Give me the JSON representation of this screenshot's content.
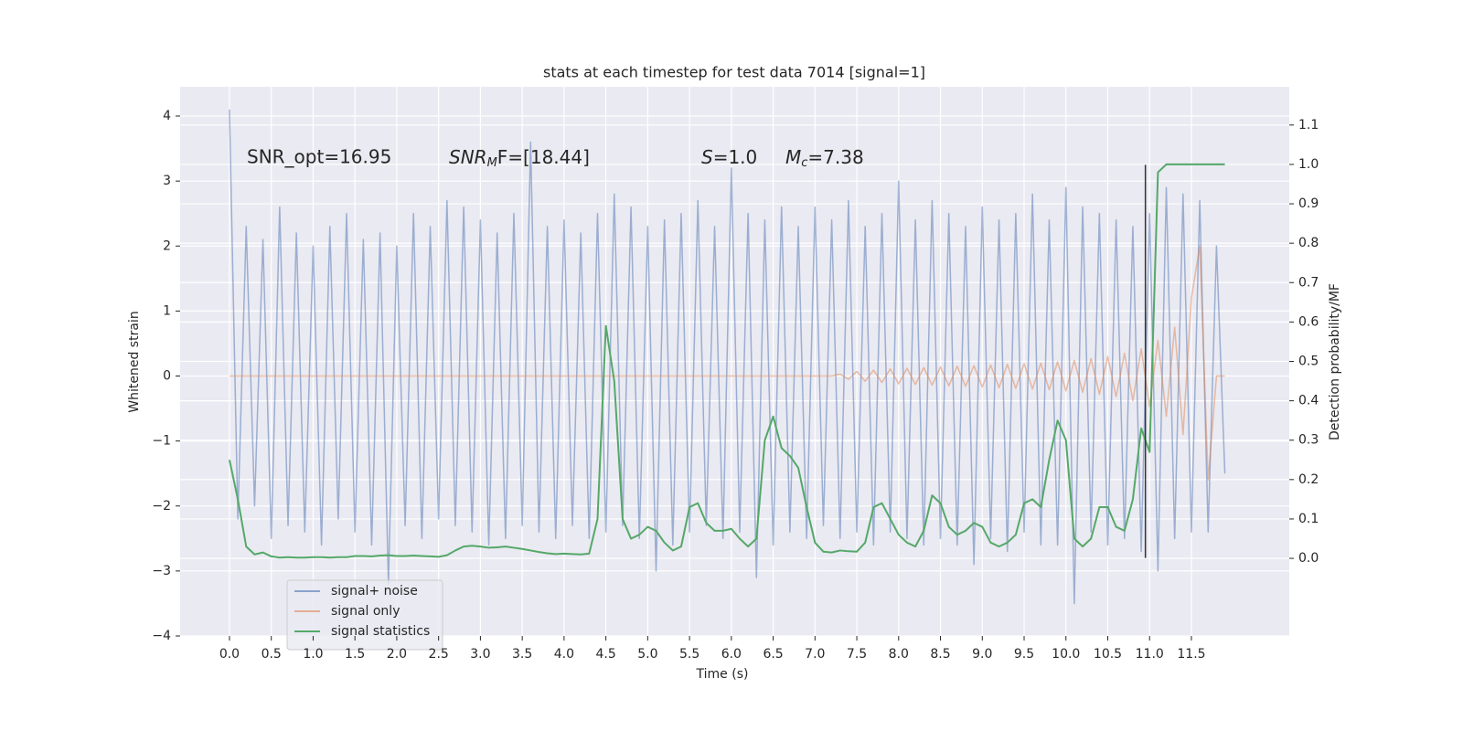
{
  "chart_data": {
    "type": "line",
    "title": "stats at each timestep for test data 7014 [signal=1]",
    "xlabel": "Time (s)",
    "ylabel": "Whitened strain",
    "y2label": "Detection probability/MF",
    "annotations": [
      {
        "text": "SNR_opt=16.95"
      },
      {
        "base": "SNR",
        "sub": "M",
        "rest": "F=[18.44]"
      },
      {
        "base": "S",
        "rest": "=1.0"
      },
      {
        "base": "M",
        "sub": "c",
        "rest": "=7.38"
      }
    ],
    "grid": true,
    "legend": "lower left",
    "xlim": [
      -0.59,
      12.67
    ],
    "xticks": [
      {
        "value": 0,
        "label": "0.0"
      },
      0.5,
      {
        "value": 1,
        "label": "1.0"
      },
      1.5,
      {
        "value": 2,
        "label": "2.0"
      },
      2.5,
      {
        "value": 3,
        "label": "3.0"
      },
      3.5,
      {
        "value": 4,
        "label": "4.0"
      },
      4.5,
      {
        "value": 5,
        "label": "5.0"
      },
      5.5,
      {
        "value": 6,
        "label": "6.0"
      },
      6.5,
      {
        "value": 7,
        "label": "7.0"
      },
      7.5,
      {
        "value": 8,
        "label": "8.0"
      },
      8.5,
      {
        "value": 9,
        "label": "9.0"
      },
      9.5,
      {
        "value": 10,
        "label": "10.0"
      },
      10.5,
      {
        "value": 11,
        "label": "11.0"
      },
      11.5
    ],
    "ylim": [
      -4.0,
      4.45
    ],
    "yticks": [
      {
        "value": -4,
        "label": "−4"
      },
      {
        "value": -3,
        "label": "−3"
      },
      {
        "value": -2,
        "label": "−2"
      },
      {
        "value": -1,
        "label": "−1"
      },
      0,
      1,
      2,
      3,
      4
    ],
    "y2lim": [
      -0.197,
      1.197
    ],
    "y2ticks": [
      {
        "value": 0,
        "label": "0.0"
      },
      0.1,
      0.2,
      0.3,
      0.4,
      0.5,
      0.6,
      0.7,
      0.8,
      0.9,
      {
        "value": 1,
        "label": "1.0"
      },
      1.1
    ],
    "vline": {
      "x": 10.95,
      "ymin": -2.8,
      "ymax": 3.25,
      "color": "#333333"
    },
    "x": [
      0,
      0.1,
      0.2,
      0.3,
      0.4,
      0.5,
      0.6,
      0.7,
      0.8,
      0.9,
      1,
      1.1,
      1.2,
      1.3,
      1.4,
      1.5,
      1.6,
      1.7,
      1.8,
      1.9,
      2,
      2.1,
      2.2,
      2.3,
      2.4,
      2.5,
      2.6,
      2.7,
      2.8,
      2.9,
      3,
      3.1,
      3.2,
      3.3,
      3.4,
      3.5,
      3.6,
      3.7,
      3.8,
      3.9,
      4,
      4.1,
      4.2,
      4.3,
      4.4,
      4.5,
      4.6,
      4.7,
      4.8,
      4.9,
      5,
      5.1,
      5.2,
      5.3,
      5.4,
      5.5,
      5.6,
      5.7,
      5.8,
      5.9,
      6,
      6.1,
      6.2,
      6.3,
      6.4,
      6.5,
      6.6,
      6.7,
      6.8,
      6.9,
      7,
      7.1,
      7.2,
      7.3,
      7.4,
      7.5,
      7.6,
      7.7,
      7.8,
      7.9,
      8,
      8.1,
      8.2,
      8.3,
      8.4,
      8.5,
      8.6,
      8.7,
      8.8,
      8.9,
      9,
      9.1,
      9.2,
      9.3,
      9.4,
      9.5,
      9.6,
      9.7,
      9.8,
      9.9,
      10,
      10.1,
      10.2,
      10.3,
      10.4,
      10.5,
      10.6,
      10.7,
      10.8,
      10.9,
      11,
      11.1,
      11.2,
      11.3,
      11.4,
      11.5,
      11.6,
      11.7,
      11.8,
      11.9
    ],
    "series": [
      {
        "name": "signal+ noise",
        "color": "#4c72b0",
        "values": [
          4.1,
          -2.2,
          2.3,
          -2.0,
          2.1,
          -2.5,
          2.6,
          -2.3,
          2.2,
          -2.4,
          2.0,
          -2.6,
          2.3,
          -2.2,
          2.5,
          -2.4,
          2.1,
          -2.6,
          2.2,
          -3.2,
          2.0,
          -2.3,
          2.5,
          -2.5,
          2.3,
          -2.2,
          2.7,
          -2.3,
          2.6,
          -2.4,
          2.4,
          -2.6,
          2.2,
          -2.5,
          2.5,
          -2.3,
          3.6,
          -2.4,
          2.3,
          -2.5,
          2.4,
          -2.3,
          2.2,
          -2.5,
          2.5,
          -2.4,
          2.8,
          -2.3,
          2.6,
          -2.5,
          2.3,
          -3.0,
          2.4,
          -2.6,
          2.5,
          -2.4,
          2.7,
          -2.3,
          2.3,
          -2.5,
          3.2,
          -2.4,
          2.5,
          -3.1,
          2.4,
          -2.6,
          2.6,
          -2.4,
          2.3,
          -2.5,
          2.6,
          -2.3,
          2.4,
          -2.5,
          2.7,
          -2.4,
          2.3,
          -2.6,
          2.5,
          -2.4,
          3.0,
          -2.5,
          2.4,
          -2.6,
          2.7,
          -2.5,
          2.5,
          -2.6,
          2.3,
          -2.9,
          2.6,
          -2.5,
          2.4,
          -2.7,
          2.5,
          -2.4,
          2.8,
          -2.6,
          2.4,
          -2.6,
          2.9,
          -3.5,
          2.6,
          -2.4,
          2.5,
          -2.6,
          2.4,
          -2.5,
          2.3,
          -2.7,
          2.5,
          -3.0,
          2.9,
          -2.5,
          2.8,
          -2.4,
          2.7,
          -2.4,
          2.0,
          -1.5
        ]
      },
      {
        "name": "signal only",
        "color": "#dd8452",
        "values": [
          0,
          0,
          0,
          0,
          0,
          0,
          0,
          0,
          0,
          0,
          0,
          0,
          0,
          0,
          0,
          0,
          0,
          0,
          0,
          0,
          0,
          0,
          0,
          0,
          0,
          0,
          0,
          0,
          0,
          0,
          0,
          0,
          0,
          0,
          0,
          0,
          0,
          0,
          0,
          0,
          0,
          0,
          0,
          0,
          0,
          0,
          0,
          0,
          0,
          0,
          0,
          0,
          0,
          0,
          0,
          0,
          0,
          0,
          0,
          0,
          0,
          0,
          0,
          0,
          0,
          0,
          0,
          0,
          0,
          0,
          0,
          0,
          0,
          0.03,
          -0.05,
          0.07,
          -0.08,
          0.09,
          -0.1,
          0.11,
          -0.12,
          0.12,
          -0.13,
          0.13,
          -0.14,
          0.14,
          -0.15,
          0.15,
          -0.16,
          0.16,
          -0.17,
          0.17,
          -0.18,
          0.18,
          -0.19,
          0.19,
          -0.2,
          0.2,
          -0.21,
          0.22,
          -0.23,
          0.24,
          -0.25,
          0.27,
          -0.28,
          0.3,
          -0.32,
          0.35,
          -0.38,
          0.42,
          -0.47,
          0.55,
          -0.62,
          0.75,
          -0.9,
          1.2,
          2.0,
          -1.6,
          0,
          0
        ]
      },
      {
        "name": "signal statistics",
        "color": "#55a868",
        "axis": "y2",
        "values": [
          0.25,
          0.15,
          0.03,
          0.01,
          0.015,
          0.005,
          0.002,
          0.003,
          0.002,
          0.002,
          0.003,
          0.003,
          0.002,
          0.003,
          0.003,
          0.006,
          0.006,
          0.005,
          0.007,
          0.008,
          0.006,
          0.006,
          0.007,
          0.006,
          0.005,
          0.004,
          0.008,
          0.02,
          0.03,
          0.032,
          0.03,
          0.027,
          0.028,
          0.03,
          0.027,
          0.024,
          0.02,
          0.016,
          0.013,
          0.011,
          0.012,
          0.011,
          0.01,
          0.012,
          0.1,
          0.59,
          0.45,
          0.1,
          0.05,
          0.06,
          0.08,
          0.07,
          0.04,
          0.02,
          0.03,
          0.13,
          0.14,
          0.09,
          0.07,
          0.07,
          0.075,
          0.05,
          0.03,
          0.05,
          0.3,
          0.36,
          0.28,
          0.26,
          0.23,
          0.13,
          0.04,
          0.017,
          0.015,
          0.02,
          0.018,
          0.017,
          0.04,
          0.13,
          0.14,
          0.1,
          0.06,
          0.04,
          0.03,
          0.07,
          0.16,
          0.14,
          0.08,
          0.06,
          0.07,
          0.09,
          0.08,
          0.04,
          0.03,
          0.04,
          0.06,
          0.14,
          0.15,
          0.13,
          0.25,
          0.35,
          0.3,
          0.05,
          0.03,
          0.05,
          0.13,
          0.13,
          0.08,
          0.07,
          0.15,
          0.33,
          0.27,
          0.98,
          1.0,
          1.0,
          1.0,
          1.0,
          1.0,
          1.0,
          1.0,
          1.0
        ]
      }
    ]
  }
}
